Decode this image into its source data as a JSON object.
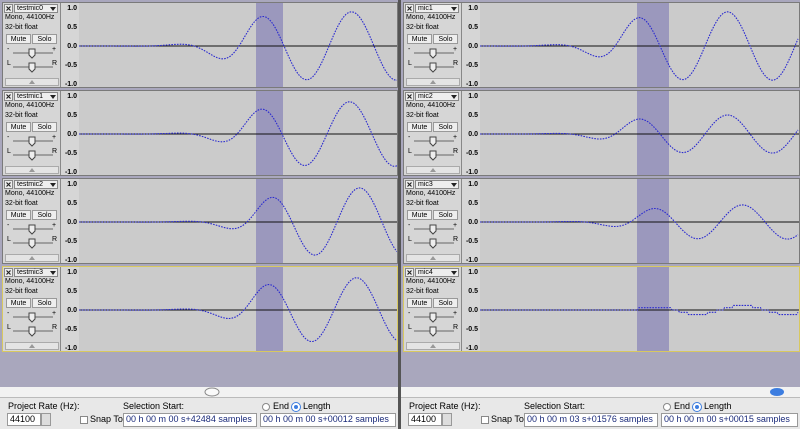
{
  "windows": [
    {
      "tracks": [
        {
          "name": "testmic0",
          "format": "Mono, 44100Hz",
          "sample_format": "32-bit float"
        },
        {
          "name": "testmic1",
          "format": "Mono, 44100Hz",
          "sample_format": "32-bit float"
        },
        {
          "name": "testmic2",
          "format": "Mono, 44100Hz",
          "sample_format": "32-bit float"
        },
        {
          "name": "testmic3",
          "format": "Mono, 44100Hz",
          "sample_format": "32-bit float"
        }
      ],
      "toolbar": {
        "project_rate_label": "Project Rate (Hz):",
        "project_rate": "44100",
        "snap_to": "Snap To",
        "selection_start_label": "Selection Start:",
        "end": "End",
        "length": "Length",
        "selection_start": "00 h 00 m 00 s+42484 samples",
        "selection_length": "00 h 00 m 00 s+00012 samples"
      }
    },
    {
      "tracks": [
        {
          "name": "mic1",
          "format": "Mono, 44100Hz",
          "sample_format": "32-bit float"
        },
        {
          "name": "mic2",
          "format": "Mono, 44100Hz",
          "sample_format": "32-bit float"
        },
        {
          "name": "mic3",
          "format": "Mono, 44100Hz",
          "sample_format": "32-bit float"
        },
        {
          "name": "mic4",
          "format": "Mono, 44100Hz",
          "sample_format": "32-bit float"
        }
      ],
      "toolbar": {
        "project_rate_label": "Project Rate (Hz):",
        "project_rate": "44100",
        "snap_to": "Snap To",
        "selection_start_label": "Selection Start:",
        "end": "End",
        "length": "Length",
        "selection_start": "00 h 00 m 03 s+01576 samples",
        "selection_length": "00 h 00 m 00 s+00015 samples"
      }
    }
  ],
  "track_controls": {
    "mute": "Mute",
    "solo": "Solo",
    "gain_min": "-",
    "gain_max": "+",
    "pan_left": "L",
    "pan_right": "R"
  },
  "ruler": [
    "1.0",
    "0.5",
    "0.0",
    "-0.5",
    "-1.0"
  ]
}
